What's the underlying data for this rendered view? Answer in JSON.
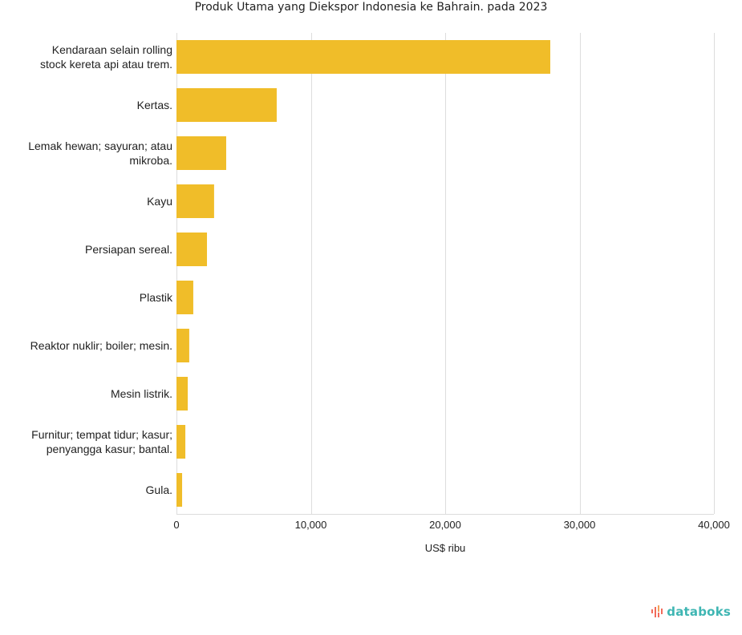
{
  "chart_data": {
    "type": "bar",
    "orientation": "horizontal",
    "title": "Produk Utama yang Diekspor Indonesia ke Bahrain. pada 2023",
    "xlabel": "US$ ribu",
    "ylabel": "",
    "xlim": [
      0,
      40000
    ],
    "xticks": [
      0,
      10000,
      20000,
      30000,
      40000
    ],
    "xtick_labels": [
      "0",
      "10,000",
      "20,000",
      "30,000",
      "40,000"
    ],
    "grid": true,
    "categories": [
      [
        "Kendaraan selain rolling",
        "stock kereta api atau trem."
      ],
      [
        "Kertas."
      ],
      [
        "Lemak hewan; sayuran; atau",
        "mikroba."
      ],
      [
        "Kayu"
      ],
      [
        "Persiapan sereal."
      ],
      [
        "Plastik"
      ],
      [
        "Reaktor nuklir; boiler; mesin."
      ],
      [
        "Mesin listrik."
      ],
      [
        "Furnitur; tempat tidur; kasur;",
        "penyangga kasur; bantal."
      ],
      [
        "Gula."
      ]
    ],
    "values": [
      27820,
      7460,
      3700,
      2800,
      2270,
      1250,
      950,
      840,
      660,
      420
    ],
    "bar_color": "#f0bd29",
    "grid_color": "#dddddd"
  },
  "brand": {
    "name": "databoks",
    "icon": "databoks-logo-icon",
    "color": "#3fb6b3",
    "icon_color": "#f26b5b"
  }
}
